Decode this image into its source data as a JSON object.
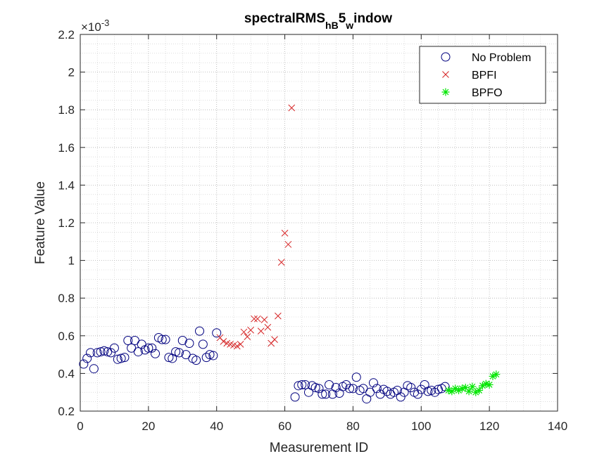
{
  "chart_data": {
    "type": "scatter",
    "title": {
      "main": "spectralRMS",
      "sub1": "hB",
      "mid": "5",
      "sub2": "w",
      "end": "indow"
    },
    "xlabel": "Measurement ID",
    "ylabel": "Feature Value",
    "y_exponent": {
      "base": "×10",
      "power": "-3"
    },
    "xlim": [
      0,
      140
    ],
    "ylim": [
      0.2,
      2.2
    ],
    "x_ticks": [
      0,
      20,
      40,
      60,
      80,
      100,
      120,
      140
    ],
    "x_tick_labels": [
      "0",
      "20",
      "40",
      "60",
      "80",
      "100",
      "120",
      "140"
    ],
    "y_ticks": [
      0.2,
      0.4,
      0.6,
      0.8,
      1.0,
      1.2,
      1.4,
      1.6,
      1.8,
      2.0,
      2.2
    ],
    "y_tick_labels": [
      "0.2",
      "0.4",
      "0.6",
      "0.8",
      "1",
      "1.2",
      "1.4",
      "1.6",
      "1.8",
      "2",
      "2.2"
    ],
    "grid": true,
    "minor_grid": true,
    "legend_position": "top-right",
    "series": [
      {
        "name": "No Problem",
        "marker": "circle",
        "color": "#00007f",
        "x": [
          1,
          2,
          3,
          4,
          5,
          6,
          7,
          8,
          9,
          10,
          11,
          12,
          13,
          14,
          15,
          16,
          17,
          18,
          19,
          20,
          21,
          22,
          23,
          24,
          25,
          26,
          27,
          28,
          29,
          30,
          31,
          32,
          33,
          34,
          35,
          36,
          37,
          38,
          39,
          40,
          63,
          64,
          65,
          66,
          67,
          68,
          69,
          70,
          71,
          72,
          73,
          74,
          75,
          76,
          77,
          78,
          79,
          80,
          81,
          82,
          83,
          84,
          85,
          86,
          87,
          88,
          89,
          90,
          91,
          92,
          93,
          94,
          95,
          96,
          97,
          98,
          99,
          100,
          101,
          102,
          103,
          104,
          105,
          106,
          107
        ],
        "y": [
          0.45,
          0.48,
          0.51,
          0.425,
          0.51,
          0.515,
          0.52,
          0.515,
          0.51,
          0.535,
          0.475,
          0.48,
          0.485,
          0.575,
          0.535,
          0.575,
          0.515,
          0.555,
          0.525,
          0.535,
          0.535,
          0.505,
          0.59,
          0.58,
          0.58,
          0.485,
          0.48,
          0.515,
          0.51,
          0.575,
          0.5,
          0.56,
          0.48,
          0.47,
          0.625,
          0.555,
          0.485,
          0.5,
          0.495,
          0.615,
          0.275,
          0.335,
          0.34,
          0.34,
          0.3,
          0.335,
          0.325,
          0.32,
          0.29,
          0.29,
          0.34,
          0.29,
          0.325,
          0.295,
          0.33,
          0.34,
          0.32,
          0.32,
          0.38,
          0.31,
          0.32,
          0.265,
          0.3,
          0.35,
          0.32,
          0.29,
          0.315,
          0.305,
          0.29,
          0.3,
          0.31,
          0.275,
          0.3,
          0.335,
          0.325,
          0.3,
          0.29,
          0.315,
          0.34,
          0.305,
          0.31,
          0.3,
          0.315,
          0.32,
          0.33
        ]
      },
      {
        "name": "BPFI",
        "marker": "x",
        "color": "#d62728",
        "x": [
          41,
          42,
          43,
          44,
          45,
          46,
          47,
          48,
          49,
          50,
          51,
          52,
          53,
          54,
          55,
          56,
          57,
          58,
          59,
          60,
          61,
          62
        ],
        "y": [
          0.59,
          0.57,
          0.56,
          0.555,
          0.55,
          0.545,
          0.555,
          0.62,
          0.595,
          0.63,
          0.69,
          0.69,
          0.625,
          0.685,
          0.645,
          0.56,
          0.58,
          0.705,
          0.99,
          1.145,
          1.085,
          1.81
        ]
      },
      {
        "name": "BPFO",
        "marker": "asterisk",
        "color": "#00e600",
        "x": [
          108,
          109,
          110,
          111,
          112,
          113,
          114,
          115,
          116,
          117,
          118,
          119,
          120,
          121,
          122
        ],
        "y": [
          0.31,
          0.305,
          0.32,
          0.31,
          0.32,
          0.325,
          0.305,
          0.33,
          0.3,
          0.31,
          0.335,
          0.345,
          0.34,
          0.385,
          0.395
        ]
      }
    ]
  }
}
